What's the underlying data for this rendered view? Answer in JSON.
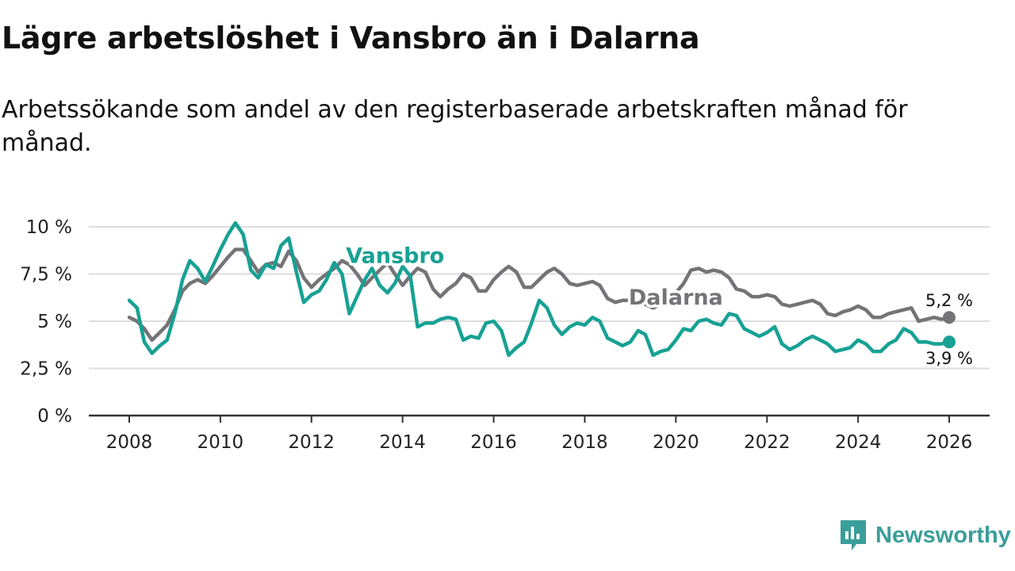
{
  "title": "Lägre arbetslöshet i Vansbro än i Dalarna",
  "subtitle": "Arbetssökande som andel av den registerbaserade arbetskraften månad för månad.",
  "brand": {
    "name": "Newsworthy",
    "icon": "newsworthy-logo-icon"
  },
  "colors": {
    "vansbro": "#17a194",
    "dalarna": "#747378",
    "grid": "#dddddd",
    "axis": "#333333",
    "brand": "#3a9e9a"
  },
  "chart_data": {
    "type": "line",
    "title": "Lägre arbetslöshet i Vansbro än i Dalarna",
    "xlabel": "",
    "ylabel": "",
    "xlim": [
      2008,
      2026
    ],
    "ylim": [
      0,
      10
    ],
    "grid": true,
    "x_ticks": [
      2008,
      2010,
      2012,
      2014,
      2016,
      2018,
      2020,
      2022,
      2024,
      2026
    ],
    "x_tick_labels": [
      "2008",
      "2010",
      "2012",
      "2014",
      "2016",
      "2018",
      "2020",
      "2022",
      "2024",
      "2026"
    ],
    "y_ticks": [
      0,
      2.5,
      5,
      7.5,
      10
    ],
    "y_tick_labels": [
      "0 %",
      "2,5 %",
      "5 %",
      "7,5 %",
      "10 %"
    ],
    "series": [
      {
        "name": "Dalarna",
        "color": "#747378",
        "end_label": "5,2 %",
        "points": [
          [
            2008.0,
            5.2
          ],
          [
            2008.17,
            5.0
          ],
          [
            2008.33,
            4.6
          ],
          [
            2008.5,
            4.0
          ],
          [
            2008.67,
            4.4
          ],
          [
            2008.83,
            4.8
          ],
          [
            2009.0,
            5.6
          ],
          [
            2009.17,
            6.6
          ],
          [
            2009.33,
            7.0
          ],
          [
            2009.5,
            7.2
          ],
          [
            2009.67,
            7.0
          ],
          [
            2009.83,
            7.4
          ],
          [
            2010.0,
            7.9
          ],
          [
            2010.17,
            8.4
          ],
          [
            2010.33,
            8.8
          ],
          [
            2010.5,
            8.8
          ],
          [
            2010.67,
            8.2
          ],
          [
            2010.83,
            7.6
          ],
          [
            2011.0,
            8.0
          ],
          [
            2011.17,
            8.1
          ],
          [
            2011.33,
            7.9
          ],
          [
            2011.5,
            8.7
          ],
          [
            2011.67,
            8.2
          ],
          [
            2011.83,
            7.3
          ],
          [
            2012.0,
            6.8
          ],
          [
            2012.17,
            7.2
          ],
          [
            2012.33,
            7.5
          ],
          [
            2012.5,
            7.8
          ],
          [
            2012.67,
            8.2
          ],
          [
            2012.83,
            8.0
          ],
          [
            2013.0,
            7.5
          ],
          [
            2013.17,
            6.9
          ],
          [
            2013.33,
            7.3
          ],
          [
            2013.5,
            7.7
          ],
          [
            2013.67,
            8.1
          ],
          [
            2013.83,
            7.5
          ],
          [
            2014.0,
            6.9
          ],
          [
            2014.17,
            7.4
          ],
          [
            2014.33,
            7.8
          ],
          [
            2014.5,
            7.6
          ],
          [
            2014.67,
            6.7
          ],
          [
            2014.83,
            6.3
          ],
          [
            2015.0,
            6.7
          ],
          [
            2015.17,
            7.0
          ],
          [
            2015.33,
            7.5
          ],
          [
            2015.5,
            7.3
          ],
          [
            2015.67,
            6.6
          ],
          [
            2015.83,
            6.6
          ],
          [
            2016.0,
            7.2
          ],
          [
            2016.17,
            7.6
          ],
          [
            2016.33,
            7.9
          ],
          [
            2016.5,
            7.6
          ],
          [
            2016.67,
            6.8
          ],
          [
            2016.83,
            6.8
          ],
          [
            2017.0,
            7.2
          ],
          [
            2017.17,
            7.6
          ],
          [
            2017.33,
            7.8
          ],
          [
            2017.5,
            7.5
          ],
          [
            2017.67,
            7.0
          ],
          [
            2017.83,
            6.9
          ],
          [
            2018.0,
            7.0
          ],
          [
            2018.17,
            7.1
          ],
          [
            2018.33,
            6.9
          ],
          [
            2018.5,
            6.2
          ],
          [
            2018.67,
            6.0
          ],
          [
            2018.83,
            6.1
          ],
          [
            2019.0,
            6.1
          ],
          [
            2019.17,
            6.1
          ],
          [
            2019.33,
            5.9
          ],
          [
            2019.5,
            5.7
          ],
          [
            2019.67,
            5.9
          ],
          [
            2019.83,
            6.2
          ],
          [
            2020.0,
            6.5
          ],
          [
            2020.17,
            7.0
          ],
          [
            2020.33,
            7.7
          ],
          [
            2020.5,
            7.8
          ],
          [
            2020.67,
            7.6
          ],
          [
            2020.83,
            7.7
          ],
          [
            2021.0,
            7.6
          ],
          [
            2021.17,
            7.3
          ],
          [
            2021.33,
            6.7
          ],
          [
            2021.5,
            6.6
          ],
          [
            2021.67,
            6.3
          ],
          [
            2021.83,
            6.3
          ],
          [
            2022.0,
            6.4
          ],
          [
            2022.17,
            6.3
          ],
          [
            2022.33,
            5.9
          ],
          [
            2022.5,
            5.8
          ],
          [
            2022.67,
            5.9
          ],
          [
            2022.83,
            6.0
          ],
          [
            2023.0,
            6.1
          ],
          [
            2023.17,
            5.9
          ],
          [
            2023.33,
            5.4
          ],
          [
            2023.5,
            5.3
          ],
          [
            2023.67,
            5.5
          ],
          [
            2023.83,
            5.6
          ],
          [
            2024.0,
            5.8
          ],
          [
            2024.17,
            5.6
          ],
          [
            2024.33,
            5.2
          ],
          [
            2024.5,
            5.2
          ],
          [
            2024.67,
            5.4
          ],
          [
            2024.83,
            5.5
          ],
          [
            2025.0,
            5.6
          ],
          [
            2025.17,
            5.7
          ],
          [
            2025.33,
            5.0
          ],
          [
            2025.5,
            5.1
          ],
          [
            2025.67,
            5.2
          ],
          [
            2025.83,
            5.1
          ],
          [
            2026.0,
            5.2
          ]
        ]
      },
      {
        "name": "Vansbro",
        "color": "#17a194",
        "end_label": "3,9 %",
        "points": [
          [
            2008.0,
            6.1
          ],
          [
            2008.17,
            5.7
          ],
          [
            2008.33,
            3.9
          ],
          [
            2008.5,
            3.3
          ],
          [
            2008.67,
            3.7
          ],
          [
            2008.83,
            4.0
          ],
          [
            2009.0,
            5.4
          ],
          [
            2009.17,
            7.2
          ],
          [
            2009.33,
            8.2
          ],
          [
            2009.5,
            7.8
          ],
          [
            2009.67,
            7.1
          ],
          [
            2009.83,
            7.9
          ],
          [
            2010.0,
            8.8
          ],
          [
            2010.17,
            9.6
          ],
          [
            2010.33,
            10.2
          ],
          [
            2010.5,
            9.6
          ],
          [
            2010.67,
            7.7
          ],
          [
            2010.83,
            7.3
          ],
          [
            2011.0,
            8.0
          ],
          [
            2011.17,
            7.8
          ],
          [
            2011.33,
            9.0
          ],
          [
            2011.5,
            9.4
          ],
          [
            2011.67,
            7.6
          ],
          [
            2011.83,
            6.0
          ],
          [
            2012.0,
            6.4
          ],
          [
            2012.17,
            6.6
          ],
          [
            2012.33,
            7.2
          ],
          [
            2012.5,
            8.1
          ],
          [
            2012.67,
            7.5
          ],
          [
            2012.83,
            5.4
          ],
          [
            2013.0,
            6.3
          ],
          [
            2013.17,
            7.2
          ],
          [
            2013.33,
            7.8
          ],
          [
            2013.5,
            6.9
          ],
          [
            2013.67,
            6.5
          ],
          [
            2013.83,
            7.0
          ],
          [
            2014.0,
            7.9
          ],
          [
            2014.17,
            7.4
          ],
          [
            2014.33,
            4.7
          ],
          [
            2014.5,
            4.9
          ],
          [
            2014.67,
            4.9
          ],
          [
            2014.83,
            5.1
          ],
          [
            2015.0,
            5.2
          ],
          [
            2015.17,
            5.1
          ],
          [
            2015.33,
            4.0
          ],
          [
            2015.5,
            4.2
          ],
          [
            2015.67,
            4.1
          ],
          [
            2015.83,
            4.9
          ],
          [
            2016.0,
            5.0
          ],
          [
            2016.17,
            4.5
          ],
          [
            2016.33,
            3.2
          ],
          [
            2016.5,
            3.6
          ],
          [
            2016.67,
            3.9
          ],
          [
            2016.83,
            4.9
          ],
          [
            2017.0,
            6.1
          ],
          [
            2017.17,
            5.7
          ],
          [
            2017.33,
            4.8
          ],
          [
            2017.5,
            4.3
          ],
          [
            2017.67,
            4.7
          ],
          [
            2017.83,
            4.9
          ],
          [
            2018.0,
            4.8
          ],
          [
            2018.17,
            5.2
          ],
          [
            2018.33,
            5.0
          ],
          [
            2018.5,
            4.1
          ],
          [
            2018.67,
            3.9
          ],
          [
            2018.83,
            3.7
          ],
          [
            2019.0,
            3.9
          ],
          [
            2019.17,
            4.5
          ],
          [
            2019.33,
            4.3
          ],
          [
            2019.5,
            3.2
          ],
          [
            2019.67,
            3.4
          ],
          [
            2019.83,
            3.5
          ],
          [
            2020.0,
            4.0
          ],
          [
            2020.17,
            4.6
          ],
          [
            2020.33,
            4.5
          ],
          [
            2020.5,
            5.0
          ],
          [
            2020.67,
            5.1
          ],
          [
            2020.83,
            4.9
          ],
          [
            2021.0,
            4.8
          ],
          [
            2021.17,
            5.4
          ],
          [
            2021.33,
            5.3
          ],
          [
            2021.5,
            4.6
          ],
          [
            2021.67,
            4.4
          ],
          [
            2021.83,
            4.2
          ],
          [
            2022.0,
            4.4
          ],
          [
            2022.17,
            4.7
          ],
          [
            2022.33,
            3.8
          ],
          [
            2022.5,
            3.5
          ],
          [
            2022.67,
            3.7
          ],
          [
            2022.83,
            4.0
          ],
          [
            2023.0,
            4.2
          ],
          [
            2023.17,
            4.0
          ],
          [
            2023.33,
            3.8
          ],
          [
            2023.5,
            3.4
          ],
          [
            2023.67,
            3.5
          ],
          [
            2023.83,
            3.6
          ],
          [
            2024.0,
            4.0
          ],
          [
            2024.17,
            3.8
          ],
          [
            2024.33,
            3.4
          ],
          [
            2024.5,
            3.4
          ],
          [
            2024.67,
            3.8
          ],
          [
            2024.83,
            4.0
          ],
          [
            2025.0,
            4.6
          ],
          [
            2025.17,
            4.4
          ],
          [
            2025.33,
            3.9
          ],
          [
            2025.5,
            3.9
          ],
          [
            2025.67,
            3.8
          ],
          [
            2025.83,
            3.8
          ],
          [
            2026.0,
            3.9
          ]
        ]
      }
    ]
  }
}
